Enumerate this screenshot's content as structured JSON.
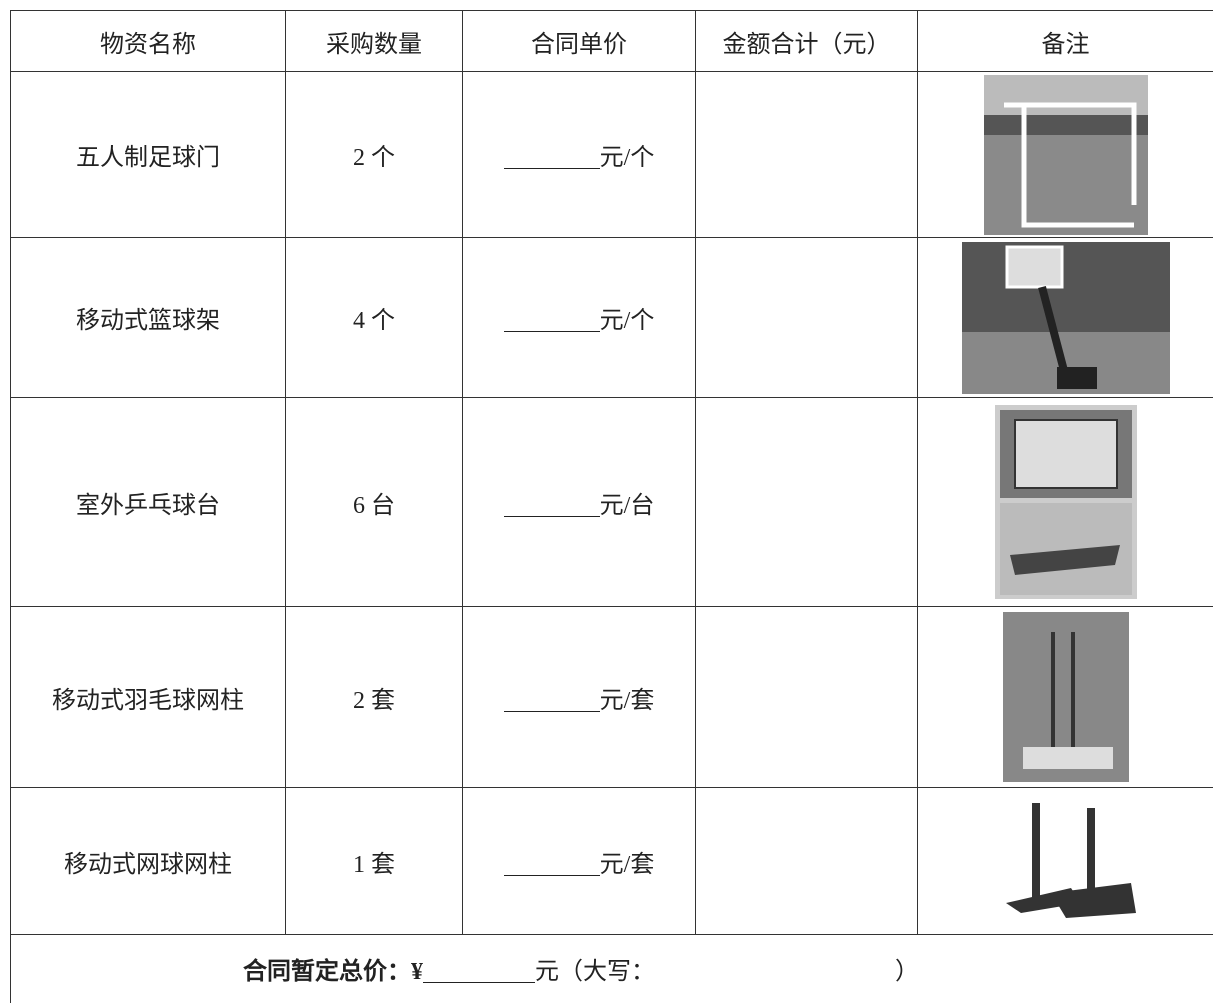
{
  "table": {
    "header": [
      "物资名称",
      "采购数量",
      "合同单价",
      "金额合计（元）",
      "备注"
    ],
    "rows": [
      {
        "name": "五人制足球门",
        "quantity": "2 个",
        "unit": "元/个"
      },
      {
        "name": "移动式篮球架",
        "quantity": "4 个",
        "unit": "元/个"
      },
      {
        "name": "室外乒乓球台",
        "quantity": "6 台",
        "unit": "元/台"
      },
      {
        "name": "移动式羽毛球网柱",
        "quantity": "2 套",
        "unit": "元/套"
      },
      {
        "name": "移动式网球网柱",
        "quantity": "1 套",
        "unit": "元/套"
      }
    ],
    "footer": {
      "label": "合同暂定总价：¥",
      "unit": "元（大写：",
      "close": "）"
    }
  }
}
